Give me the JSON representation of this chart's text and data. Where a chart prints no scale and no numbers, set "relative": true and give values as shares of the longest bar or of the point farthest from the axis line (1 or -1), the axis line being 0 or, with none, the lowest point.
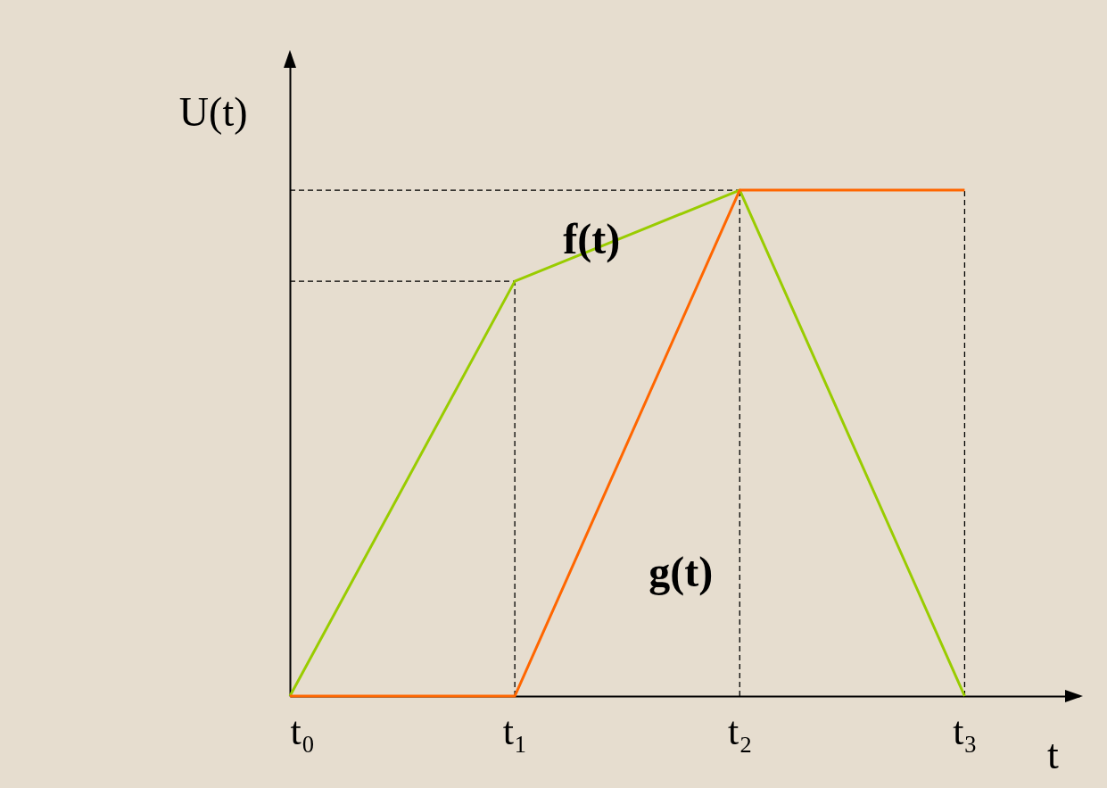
{
  "chart_data": {
    "type": "line",
    "xlabel": "t",
    "ylabel": "U(t)",
    "relative": true,
    "categories": [
      "t₀",
      "t₁",
      "t₂",
      "t₃"
    ],
    "series": [
      {
        "name": "f(t)",
        "color": "#99cc00",
        "values": [
          0,
          0.82,
          1,
          0
        ]
      },
      {
        "name": "g(t)",
        "color": "#ff6600",
        "values": [
          0,
          0,
          1,
          1
        ]
      }
    ],
    "ref_lines": [
      {
        "axis": "x",
        "value": "t₁",
        "color": "#000000",
        "line_style": "dashed"
      },
      {
        "axis": "x",
        "value": "t₂",
        "color": "#000000",
        "line_style": "dashed"
      },
      {
        "axis": "x",
        "value": "t₃",
        "color": "#000000",
        "line_style": "dashed"
      },
      {
        "axis": "y",
        "value": 1,
        "color": "#000000",
        "line_style": "dashed"
      },
      {
        "axis": "y",
        "value": 0.82,
        "color": "#000000",
        "line_style": "dashed"
      }
    ]
  }
}
